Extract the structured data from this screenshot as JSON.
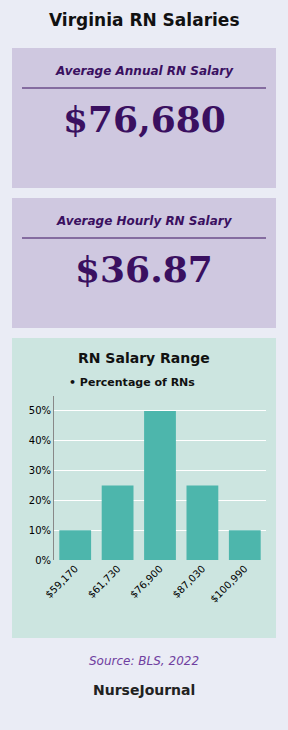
{
  "chart_data": {
    "type": "bar",
    "title": "Virginia RN Salaries",
    "subtitle": "RN Salary Range",
    "annotations": [
      "Average Annual RN Salary",
      "$76,680",
      "Average Hourly RN Salary",
      "$36.87",
      "• Percentage of RNs",
      "Source: BLS, 2022",
      "NurseJournal"
    ],
    "categories": [
      "$59,170",
      "$61,730",
      "$76,900",
      "$87,030",
      "$100,990"
    ],
    "values": [
      10,
      25,
      50,
      25,
      10
    ],
    "color": "#4db6ac",
    "ylim": [
      0,
      55
    ],
    "yticks": [
      {
        "value": 0,
        "label": "0%"
      },
      {
        "value": 10,
        "label": "10%"
      },
      {
        "value": 20,
        "label": "20%"
      },
      {
        "value": 30,
        "label": "30%"
      },
      {
        "value": 40,
        "label": "40%"
      },
      {
        "value": 50,
        "label": "50%"
      }
    ],
    "grid": true
  }
}
